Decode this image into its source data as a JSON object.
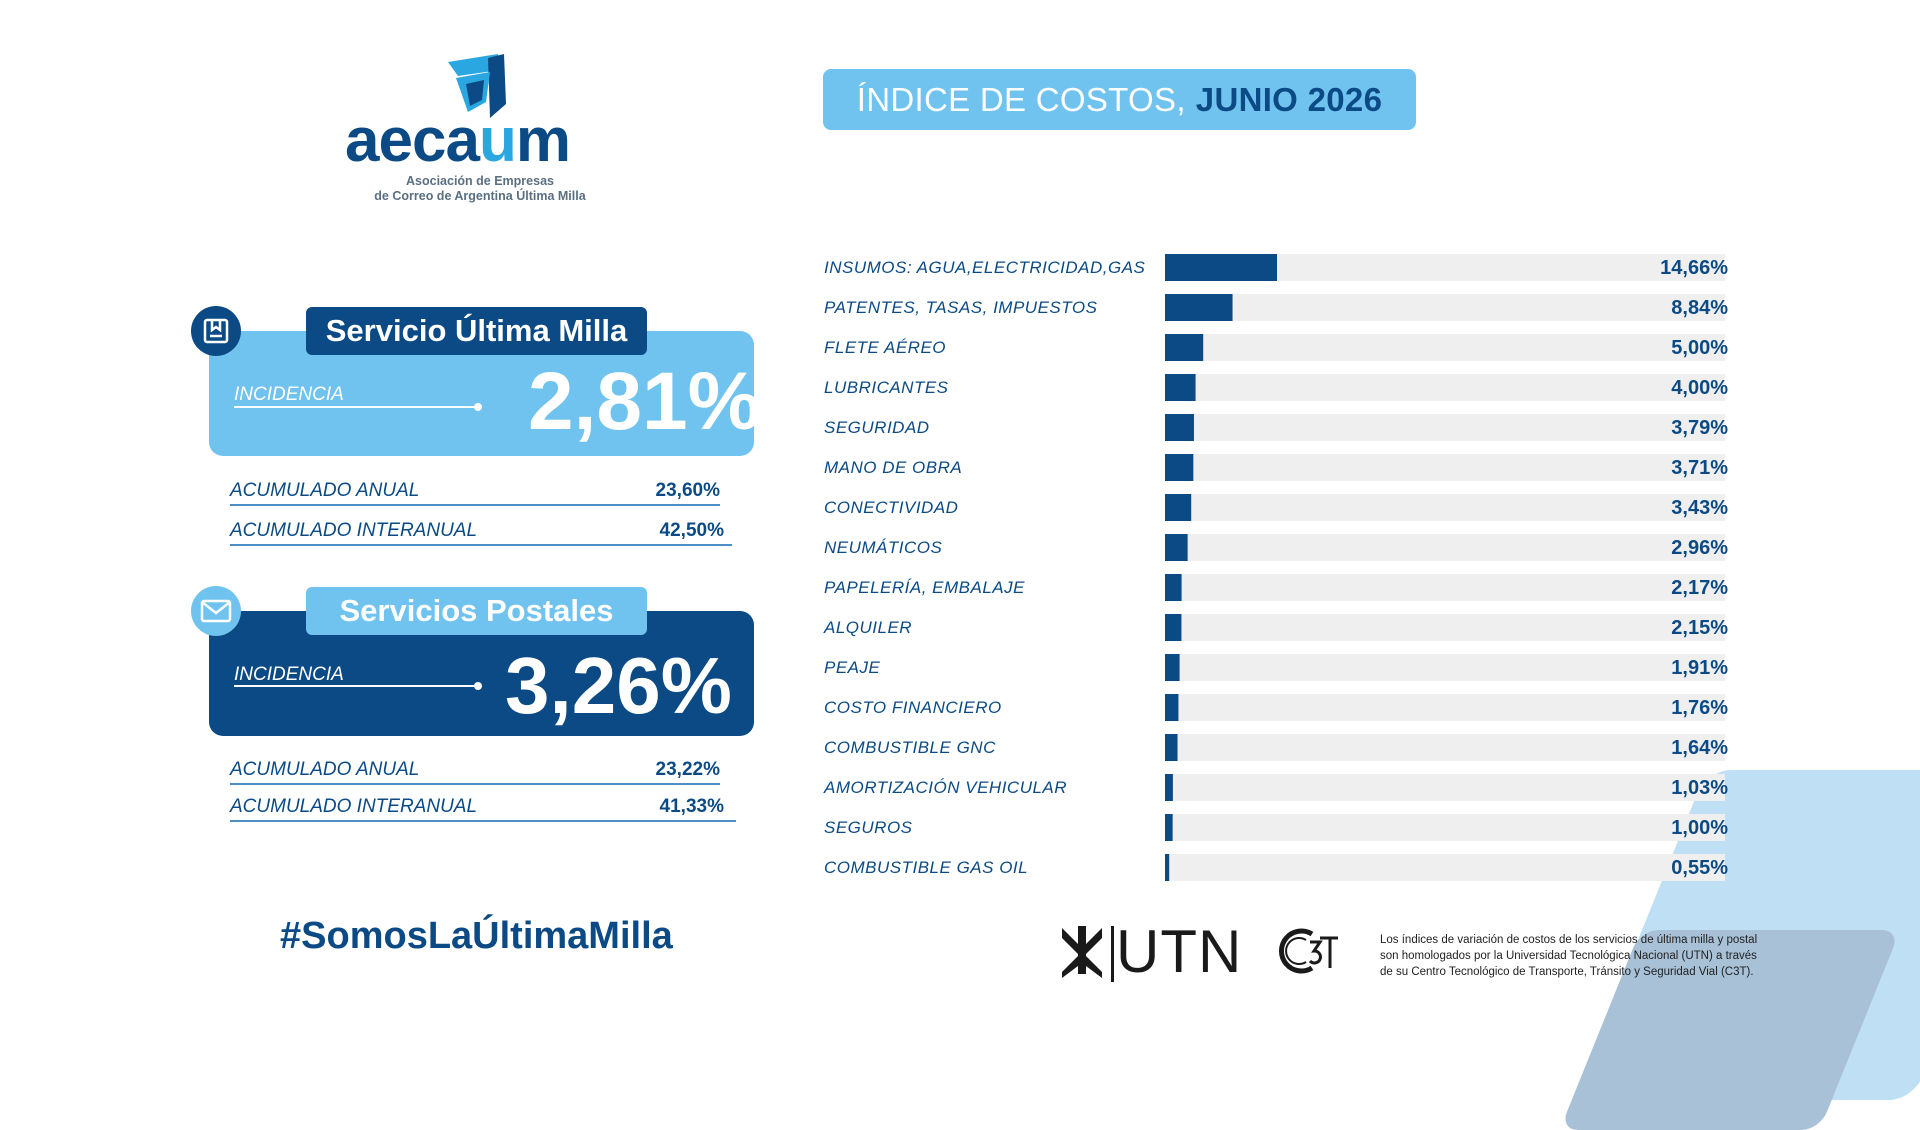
{
  "brand": {
    "name_a": "aeca",
    "name_u": "u",
    "name_m": "m",
    "subtitle_line1": "Asociación de Empresas",
    "subtitle_line2": "de Correo de Argentina Última Milla"
  },
  "title": {
    "prefix": "ÍNDICE DE COSTOS,",
    "period": "JUNIO 2026"
  },
  "services": [
    {
      "name": "Servicio Última Milla",
      "icon": "box-icon",
      "incidence_label": "INCIDENCIA",
      "incidence_value": "2,81%",
      "annual_label": "ACUMULADO ANUAL",
      "annual_value": "23,60%",
      "interannual_label": "ACUMULADO INTERANUAL",
      "interannual_value": "42,50%"
    },
    {
      "name": "Servicios Postales",
      "icon": "envelope-icon",
      "incidence_label": "INCIDENCIA",
      "incidence_value": "3,26%",
      "annual_label": "ACUMULADO ANUAL",
      "annual_value": "23,22%",
      "interannual_label": "ACUMULADO INTERANUAL",
      "interannual_value": "41,33%"
    }
  ],
  "hashtag": "#SomosLaÚltimaMilla",
  "chart_data": {
    "type": "bar",
    "orientation": "horizontal",
    "xlim": [
      0,
      50
    ],
    "categories": [
      "INSUMOS: AGUA,ELECTRICIDAD,GAS",
      "PATENTES, TASAS, IMPUESTOS",
      "FLETE AÉREO",
      "LUBRICANTES",
      "SEGURIDAD",
      "MANO DE OBRA",
      "CONECTIVIDAD",
      "NEUMÁTICOS",
      "PAPELERÍA, EMBALAJE",
      "ALQUILER",
      "PEAJE",
      "COSTO FINANCIERO",
      "COMBUSTIBLE GNC",
      "AMORTIZACIÓN VEHICULAR",
      "SEGUROS",
      "COMBUSTIBLE GAS OIL"
    ],
    "values": [
      14.66,
      8.84,
      5.0,
      4.0,
      3.79,
      3.71,
      3.43,
      2.96,
      2.17,
      2.15,
      1.91,
      1.76,
      1.64,
      1.03,
      1.0,
      0.55
    ],
    "value_labels": [
      "14,66%",
      "8,84%",
      "5,00%",
      "4,00%",
      "3,79%",
      "3,71%",
      "3,43%",
      "2,96%",
      "2,17%",
      "2,15%",
      "1,91%",
      "1,76%",
      "1,64%",
      "1,03%",
      "1,00%",
      "0,55%"
    ],
    "bar_color": "#0b4a85",
    "track_color": "#efefef"
  },
  "footer": {
    "utn_text": "UTN",
    "note_line1": "Los índices de variación de costos de los servicios de última milla y postal",
    "note_line2": "son homologados por la Universidad Tecnológica Nacional (UTN) a través",
    "note_line3": "de su Centro Tecnológico de Transporte, Tránsito y Seguridad Vial (C3T)."
  },
  "colors": {
    "primary": "#0b4a85",
    "light": "#6fc3ee"
  }
}
